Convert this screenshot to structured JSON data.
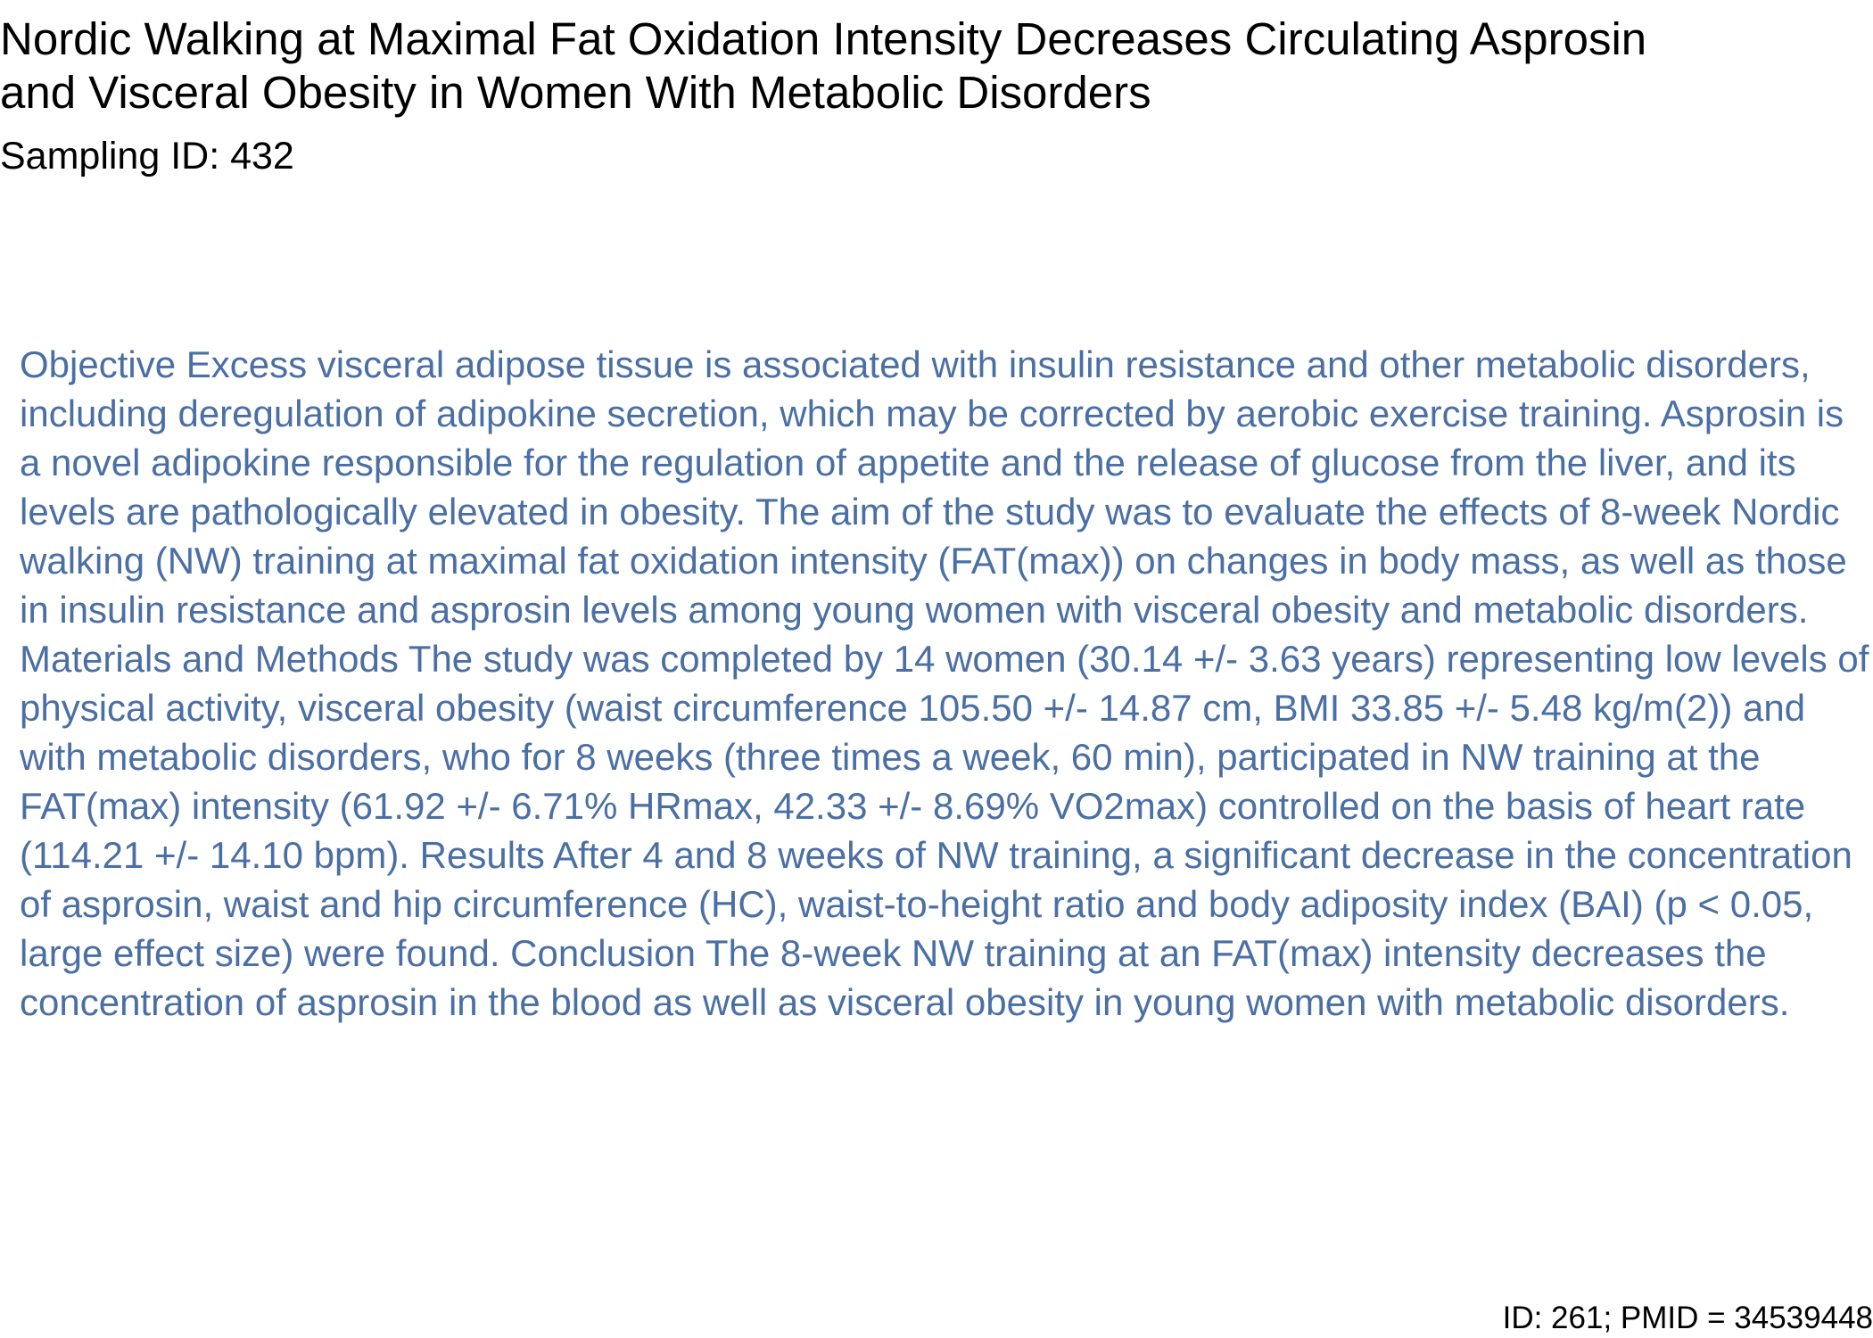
{
  "title": "Nordic Walking at Maximal Fat Oxidation Intensity Decreases Circulating Asprosin and Visceral Obesity in Women With Metabolic Disorders",
  "sampling_id": "Sampling ID: 432",
  "abstract": "Objective Excess visceral adipose tissue is associated with insulin resistance and other metabolic disorders, including deregulation of adipokine secretion, which may be corrected by aerobic exercise training. Asprosin is a novel adipokine responsible for the regulation of appetite and the release of glucose from the liver, and its levels are pathologically elevated in obesity. The aim of the study was to evaluate the effects of 8-week Nordic walking (NW) training at maximal fat oxidation intensity (FAT(max)) on changes in body mass, as well as those in insulin resistance and asprosin levels among young women with visceral obesity and metabolic disorders. Materials and Methods The study was completed by 14 women (30.14 +/- 3.63 years) representing low levels of physical activity, visceral obesity (waist circumference 105.50 +/- 14.87 cm, BMI 33.85 +/- 5.48 kg/m(2)) and with metabolic disorders, who for 8 weeks (three times a week, 60 min), participated in NW training at the FAT(max) intensity (61.92 +/- 6.71% HRmax, 42.33 +/- 8.69% VO2max) controlled on the basis of heart rate (114.21 +/- 14.10 bpm). Results After 4 and 8 weeks of NW training, a significant decrease in the concentration of asprosin, waist and hip circumference (HC), waist-to-height ratio and body adiposity index (BAI) (p < 0.05, large effect size) were found. Conclusion The 8-week NW training at an FAT(max) intensity decreases the concentration of asprosin in the blood as well as visceral obesity in young women with metabolic disorders.",
  "footer": "ID: 261; PMID = 34539448",
  "colors": {
    "title": "#000000",
    "abstract": "#4a6fa5",
    "background": "#ffffff"
  }
}
